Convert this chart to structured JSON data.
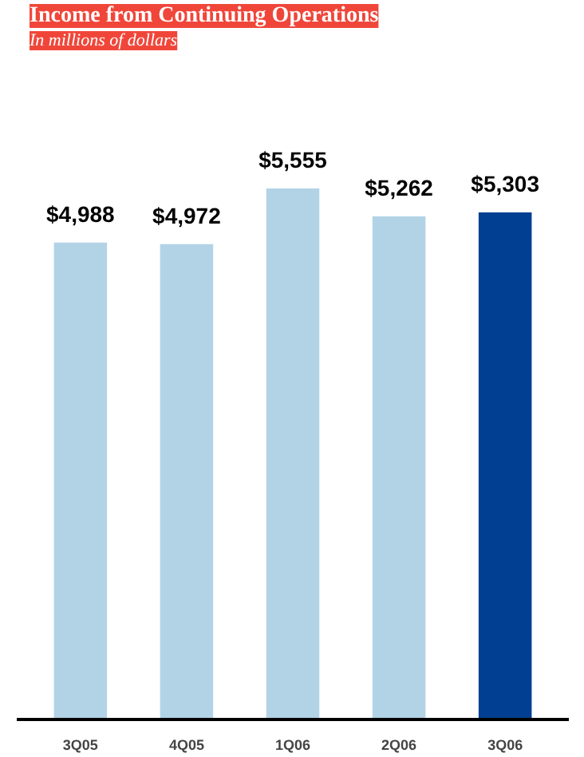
{
  "chart_data": {
    "type": "bar",
    "title": "Income from Continuing Operations",
    "subtitle": "In millions of dollars",
    "categories": [
      "3Q05",
      "4Q05",
      "1Q06",
      "2Q06",
      "3Q06"
    ],
    "values": [
      4988,
      4972,
      5555,
      5262,
      5303
    ],
    "colors": [
      "#b2d3e6",
      "#b2d3e6",
      "#b2d3e6",
      "#b2d3e6",
      "#003f92"
    ],
    "value_labels": [
      "$4,988",
      "$4,972",
      "$5,555",
      "$5,262",
      "$5,303"
    ],
    "grid": false
  }
}
